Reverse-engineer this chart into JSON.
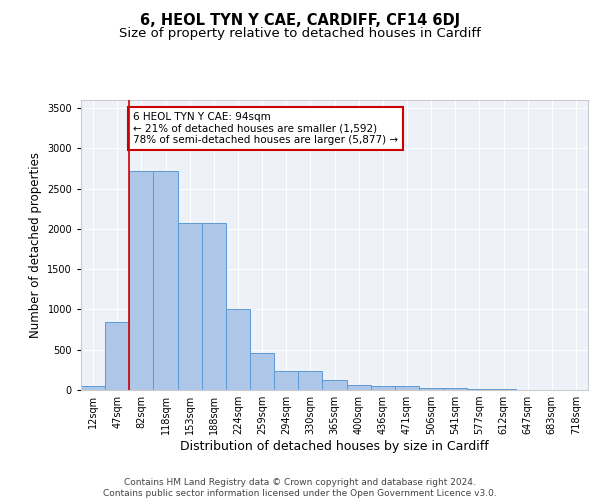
{
  "title": "6, HEOL TYN Y CAE, CARDIFF, CF14 6DJ",
  "subtitle": "Size of property relative to detached houses in Cardiff",
  "xlabel": "Distribution of detached houses by size in Cardiff",
  "ylabel": "Number of detached properties",
  "categories": [
    "12sqm",
    "47sqm",
    "82sqm",
    "118sqm",
    "153sqm",
    "188sqm",
    "224sqm",
    "259sqm",
    "294sqm",
    "330sqm",
    "365sqm",
    "400sqm",
    "436sqm",
    "471sqm",
    "506sqm",
    "541sqm",
    "577sqm",
    "612sqm",
    "647sqm",
    "683sqm",
    "718sqm"
  ],
  "values": [
    55,
    850,
    2720,
    2720,
    2070,
    2070,
    1010,
    460,
    230,
    230,
    130,
    60,
    50,
    50,
    30,
    30,
    10,
    10,
    0,
    0,
    0
  ],
  "bar_color": "#aec6e8",
  "bar_edge_color": "#5b9bd5",
  "vline_x_index": 2,
  "vline_color": "#cc0000",
  "annotation_text": "6 HEOL TYN Y CAE: 94sqm\n← 21% of detached houses are smaller (1,592)\n78% of semi-detached houses are larger (5,877) →",
  "annotation_box_color": "white",
  "annotation_box_edge": "#cc0000",
  "ylim": [
    0,
    3600
  ],
  "yticks": [
    0,
    500,
    1000,
    1500,
    2000,
    2500,
    3000,
    3500
  ],
  "footer_line1": "Contains HM Land Registry data © Crown copyright and database right 2024.",
  "footer_line2": "Contains public sector information licensed under the Open Government Licence v3.0.",
  "bg_color": "#eef2f8",
  "title_fontsize": 10.5,
  "subtitle_fontsize": 9.5,
  "xlabel_fontsize": 9,
  "ylabel_fontsize": 8.5,
  "tick_fontsize": 7,
  "annotation_fontsize": 7.5,
  "footer_fontsize": 6.5
}
